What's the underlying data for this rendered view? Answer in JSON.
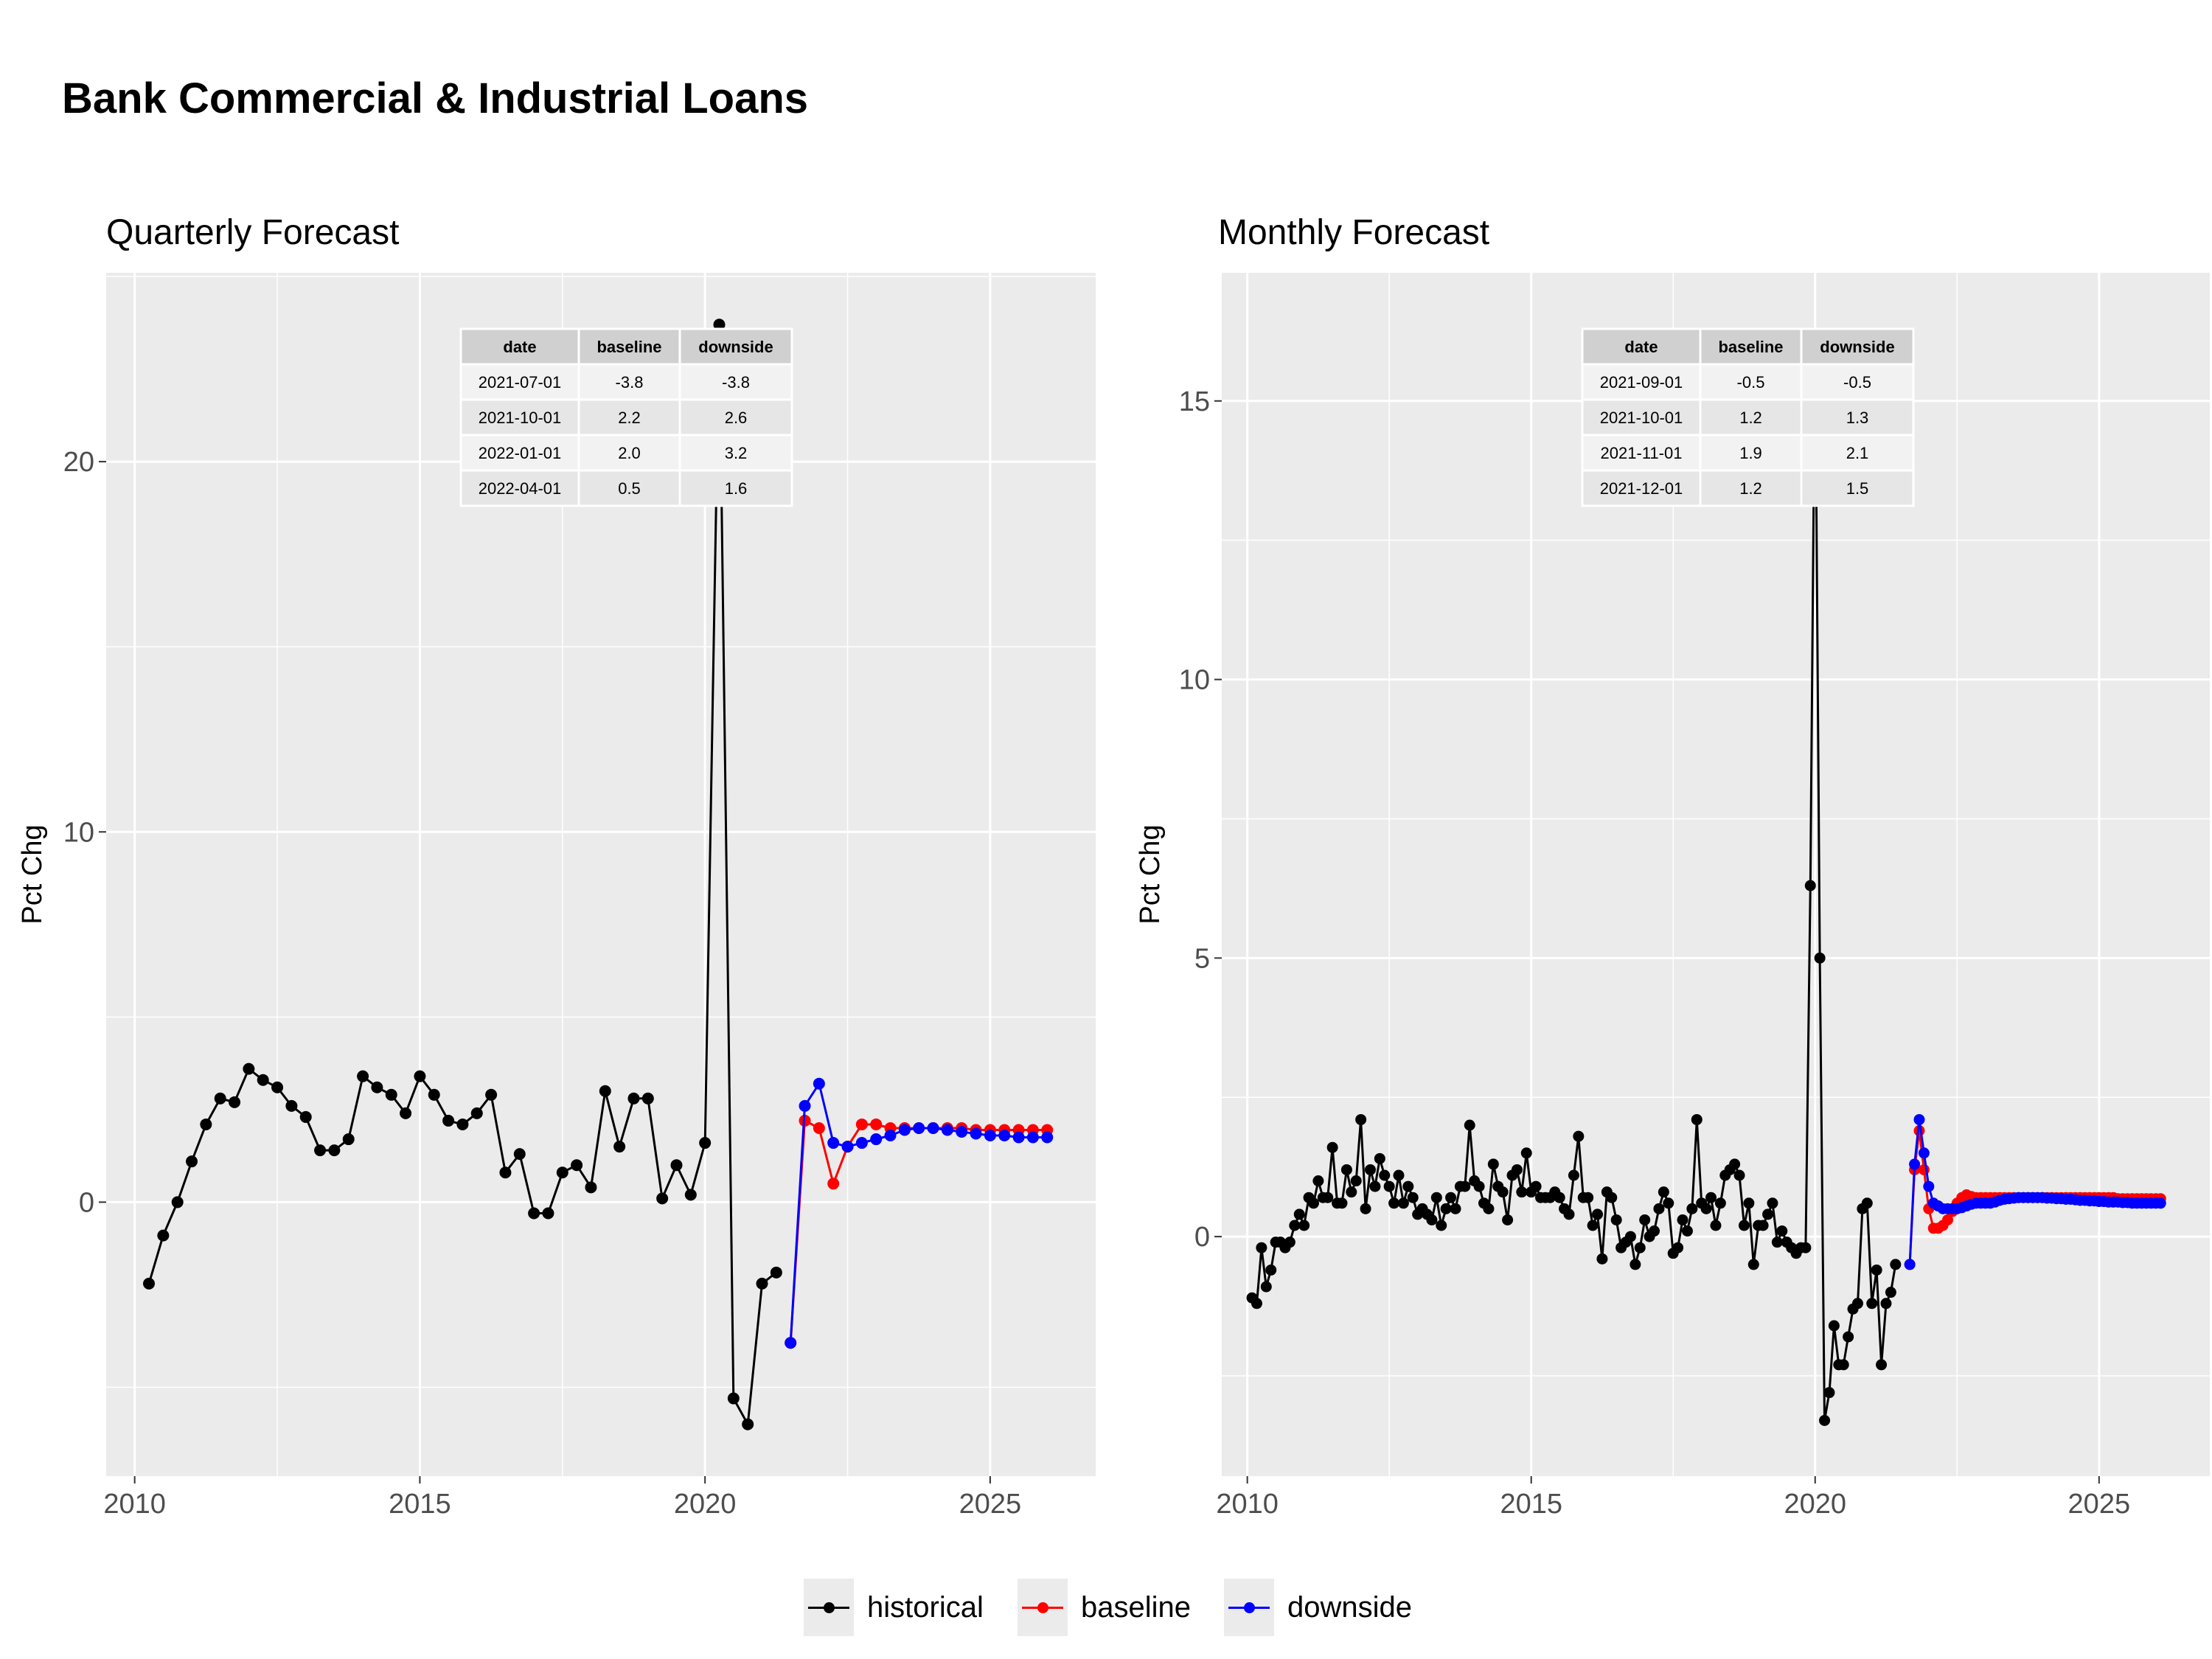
{
  "title": "Bank Commercial & Industrial Loans",
  "colors": {
    "historical": "#000000",
    "baseline": "#ff0000",
    "downside": "#0000ff",
    "panel_bg": "#ebebeb",
    "grid": "#ffffff"
  },
  "legend": [
    {
      "label": "historical",
      "color": "#000000"
    },
    {
      "label": "baseline",
      "color": "#ff0000"
    },
    {
      "label": "downside",
      "color": "#0000ff"
    }
  ],
  "chart_data": [
    {
      "type": "line",
      "title": "Quarterly Forecast",
      "xlabel": "",
      "ylabel": "Pct Chg",
      "xlim": [
        2009.5,
        2026.85
      ],
      "ylim": [
        -7.4,
        25.1
      ],
      "xticks": [
        2010,
        2015,
        2020,
        2025
      ],
      "xtick_labels": [
        "2010",
        "2015",
        "2020",
        "2025"
      ],
      "yticks": [
        0,
        10,
        20
      ],
      "ytick_labels": [
        "0",
        "10",
        "20"
      ],
      "grid": true,
      "legend_position": "bottom",
      "series": [
        {
          "name": "historical",
          "color": "#000000",
          "x": [
            2010.25,
            2010.5,
            2010.75,
            2011.0,
            2011.25,
            2011.5,
            2011.75,
            2012.0,
            2012.25,
            2012.5,
            2012.75,
            2013.0,
            2013.25,
            2013.5,
            2013.75,
            2014.0,
            2014.25,
            2014.5,
            2014.75,
            2015.0,
            2015.25,
            2015.5,
            2015.75,
            2016.0,
            2016.25,
            2016.5,
            2016.75,
            2017.0,
            2017.25,
            2017.5,
            2017.75,
            2018.0,
            2018.25,
            2018.5,
            2018.75,
            2019.0,
            2019.25,
            2019.5,
            2019.75,
            2020.0,
            2020.25,
            2020.5,
            2020.75,
            2021.0,
            2021.25
          ],
          "y": [
            -2.2,
            -0.9,
            0.0,
            1.1,
            2.1,
            2.8,
            2.7,
            3.6,
            3.3,
            3.1,
            2.6,
            2.3,
            1.4,
            1.4,
            1.7,
            3.4,
            3.1,
            2.9,
            2.4,
            3.4,
            2.9,
            2.2,
            2.1,
            2.4,
            2.9,
            0.8,
            1.3,
            -0.3,
            -0.3,
            0.8,
            1.0,
            0.4,
            3.0,
            1.5,
            2.8,
            2.8,
            0.1,
            1.0,
            0.2,
            1.6,
            23.7,
            -5.3,
            -6.0,
            -2.2,
            -1.9
          ]
        },
        {
          "name": "baseline",
          "color": "#ff0000",
          "x": [
            2021.5,
            2021.75,
            2022.0,
            2022.25,
            2022.5,
            2022.75,
            2023.0,
            2023.25,
            2023.5,
            2023.75,
            2024.0,
            2024.25,
            2024.5,
            2024.75,
            2025.0,
            2025.25,
            2025.5,
            2025.75,
            2026.0
          ],
          "y": [
            -3.8,
            2.2,
            2.0,
            0.5,
            1.5,
            2.1,
            2.1,
            2.0,
            2.0,
            2.0,
            2.0,
            2.0,
            2.0,
            1.95,
            1.95,
            1.95,
            1.95,
            1.95,
            1.95
          ]
        },
        {
          "name": "downside",
          "color": "#0000ff",
          "x": [
            2021.5,
            2021.75,
            2022.0,
            2022.25,
            2022.5,
            2022.75,
            2023.0,
            2023.25,
            2023.5,
            2023.75,
            2024.0,
            2024.25,
            2024.5,
            2024.75,
            2025.0,
            2025.25,
            2025.5,
            2025.75,
            2026.0
          ],
          "y": [
            -3.8,
            2.6,
            3.2,
            1.6,
            1.5,
            1.6,
            1.7,
            1.8,
            1.95,
            2.0,
            2.0,
            1.95,
            1.9,
            1.85,
            1.8,
            1.8,
            1.75,
            1.75,
            1.75
          ]
        }
      ],
      "table": {
        "columns": [
          "date",
          "baseline",
          "downside"
        ],
        "rows": [
          [
            "2021-07-01",
            "-3.8",
            "-3.8"
          ],
          [
            "2021-10-01",
            "2.2",
            "2.6"
          ],
          [
            "2022-01-01",
            "2.0",
            "3.2"
          ],
          [
            "2022-04-01",
            "0.5",
            "1.6"
          ]
        ]
      }
    },
    {
      "type": "line",
      "title": "Monthly Forecast",
      "xlabel": "",
      "ylabel": "Pct Chg",
      "xlim": [
        2009.55,
        2026.95
      ],
      "ylim": [
        -4.3,
        17.3
      ],
      "xticks": [
        2010,
        2015,
        2020,
        2025
      ],
      "xtick_labels": [
        "2010",
        "2015",
        "2020",
        "2025"
      ],
      "yticks": [
        0,
        5,
        10,
        15
      ],
      "ytick_labels": [
        "0",
        "5",
        "10",
        "15"
      ],
      "grid": true,
      "legend_position": "bottom",
      "series": [
        {
          "name": "historical",
          "color": "#000000",
          "x_start": 2010.083,
          "x_step": 0.08333,
          "y": [
            -1.1,
            -1.2,
            -0.2,
            -0.9,
            -0.6,
            -0.1,
            -0.1,
            -0.2,
            -0.1,
            0.2,
            0.4,
            0.2,
            0.7,
            0.6,
            1.0,
            0.7,
            0.7,
            1.6,
            0.6,
            0.6,
            1.2,
            0.8,
            1.0,
            2.1,
            0.5,
            1.2,
            0.9,
            1.4,
            1.1,
            0.9,
            0.6,
            1.1,
            0.6,
            0.9,
            0.7,
            0.4,
            0.5,
            0.4,
            0.3,
            0.7,
            0.2,
            0.5,
            0.7,
            0.5,
            0.9,
            0.9,
            2.0,
            1.0,
            0.9,
            0.6,
            0.5,
            1.3,
            0.9,
            0.8,
            0.3,
            1.1,
            1.2,
            0.8,
            1.5,
            0.8,
            0.9,
            0.7,
            0.7,
            0.7,
            0.8,
            0.7,
            0.5,
            0.4,
            1.1,
            1.8,
            0.7,
            0.7,
            0.2,
            0.4,
            -0.4,
            0.8,
            0.7,
            0.3,
            -0.2,
            -0.1,
            0.0,
            -0.5,
            -0.2,
            0.3,
            0.0,
            0.1,
            0.5,
            0.8,
            0.6,
            -0.3,
            -0.2,
            0.3,
            0.1,
            0.5,
            2.1,
            0.6,
            0.5,
            0.7,
            0.2,
            0.6,
            1.1,
            1.2,
            1.3,
            1.1,
            0.2,
            0.6,
            -0.5,
            0.2,
            0.2,
            0.4,
            0.6,
            -0.1,
            0.1,
            -0.1,
            -0.2,
            -0.3,
            -0.2,
            -0.2,
            6.3,
            16.2,
            5.0,
            -3.3,
            -2.8,
            -1.6,
            -2.3,
            -2.3,
            -1.8,
            -1.3,
            -1.2,
            0.5,
            0.6,
            -1.2,
            -0.6,
            -2.3,
            -1.2,
            -1.0,
            -0.5
          ]
        },
        {
          "name": "baseline",
          "color": "#ff0000",
          "x_start": 2021.667,
          "x_step": 0.08333,
          "y": [
            -0.5,
            1.2,
            1.9,
            1.2,
            0.5,
            0.15,
            0.15,
            0.2,
            0.3,
            0.45,
            0.6,
            0.7,
            0.75,
            0.72,
            0.7,
            0.7,
            0.7,
            0.7,
            0.7,
            0.7,
            0.7,
            0.7,
            0.7,
            0.7,
            0.7,
            0.7,
            0.7,
            0.7,
            0.7,
            0.7,
            0.7,
            0.7,
            0.7,
            0.7,
            0.7,
            0.7,
            0.7,
            0.7,
            0.7,
            0.7,
            0.7,
            0.7,
            0.7,
            0.7,
            0.68,
            0.68,
            0.68,
            0.68,
            0.68,
            0.68,
            0.68,
            0.68,
            0.68,
            0.68
          ]
        },
        {
          "name": "downside",
          "color": "#0000ff",
          "x_start": 2021.667,
          "x_step": 0.08333,
          "y": [
            -0.5,
            1.3,
            2.1,
            1.5,
            0.9,
            0.6,
            0.55,
            0.5,
            0.5,
            0.5,
            0.5,
            0.52,
            0.55,
            0.58,
            0.6,
            0.6,
            0.6,
            0.6,
            0.62,
            0.65,
            0.67,
            0.68,
            0.69,
            0.7,
            0.7,
            0.7,
            0.7,
            0.7,
            0.7,
            0.69,
            0.69,
            0.68,
            0.68,
            0.67,
            0.67,
            0.66,
            0.65,
            0.65,
            0.64,
            0.64,
            0.63,
            0.63,
            0.62,
            0.62,
            0.62,
            0.61,
            0.61,
            0.6,
            0.6,
            0.6,
            0.6,
            0.6,
            0.6,
            0.6
          ]
        }
      ],
      "table": {
        "columns": [
          "date",
          "baseline",
          "downside"
        ],
        "rows": [
          [
            "2021-09-01",
            "-0.5",
            "-0.5"
          ],
          [
            "2021-10-01",
            "1.2",
            "1.3"
          ],
          [
            "2021-11-01",
            "1.9",
            "2.1"
          ],
          [
            "2021-12-01",
            "1.2",
            "1.5"
          ]
        ]
      }
    }
  ]
}
